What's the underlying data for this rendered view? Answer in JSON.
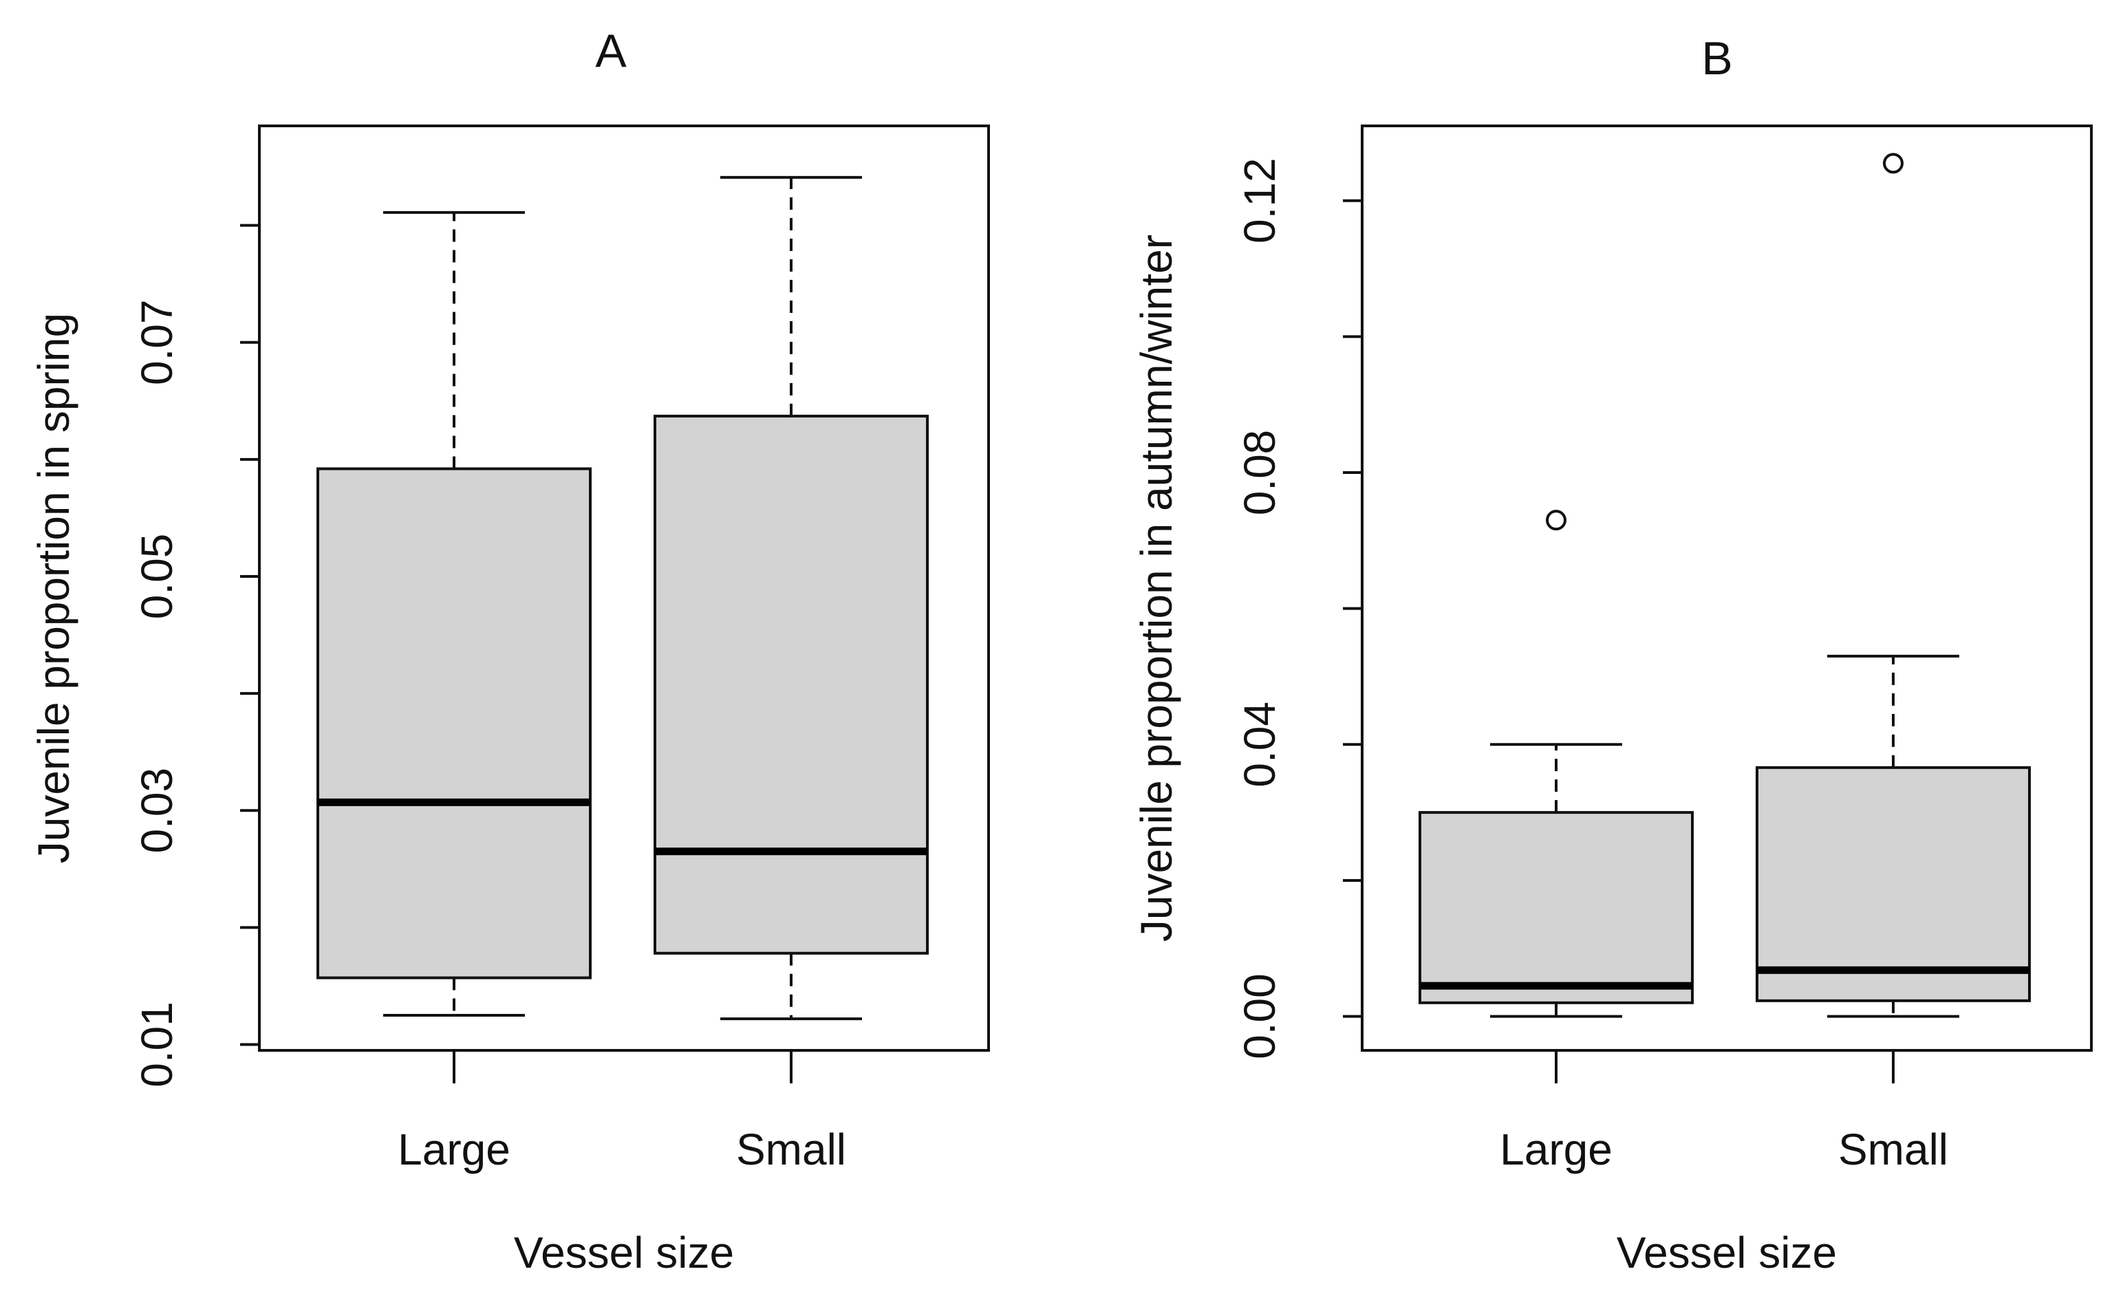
{
  "chart_data": [
    {
      "type": "box",
      "panel": "A",
      "title": "A",
      "xlabel": "Vessel size",
      "ylabel": "Juvenile proportion in spring",
      "ylim": [
        0.0095,
        0.0885
      ],
      "yticks": [
        0.01,
        0.02,
        0.03,
        0.04,
        0.05,
        0.06,
        0.07,
        0.08
      ],
      "ytick_labels": [
        "0.01",
        "",
        "0.03",
        "",
        "0.05",
        "",
        "0.07",
        ""
      ],
      "categories": [
        "Large",
        "Small"
      ],
      "boxes": [
        {
          "category": "Large",
          "whisker_low": 0.0125,
          "q1": 0.0157,
          "median": 0.0307,
          "q3": 0.0592,
          "whisker_high": 0.0811,
          "outliers": []
        },
        {
          "category": "Small",
          "whisker_low": 0.0122,
          "q1": 0.0178,
          "median": 0.0265,
          "q3": 0.0637,
          "whisker_high": 0.0841,
          "outliers": []
        }
      ]
    },
    {
      "type": "box",
      "panel": "B",
      "title": "B",
      "xlabel": "Vessel size",
      "ylabel": "Juvenile proportion in autumn/winter",
      "ylim": [
        -0.005,
        0.131
      ],
      "yticks": [
        0.0,
        0.02,
        0.04,
        0.06,
        0.08,
        0.1,
        0.12
      ],
      "ytick_labels": [
        "0.00",
        "",
        "0.04",
        "",
        "0.08",
        "",
        "0.12"
      ],
      "categories": [
        "Large",
        "Small"
      ],
      "boxes": [
        {
          "category": "Large",
          "whisker_low": 0.0,
          "q1": 0.002,
          "median": 0.0045,
          "q3": 0.03,
          "whisker_high": 0.04,
          "outliers": [
            0.073
          ]
        },
        {
          "category": "Small",
          "whisker_low": 0.0,
          "q1": 0.0023,
          "median": 0.0068,
          "q3": 0.0366,
          "whisker_high": 0.053,
          "outliers": [
            0.1255
          ]
        }
      ]
    }
  ]
}
